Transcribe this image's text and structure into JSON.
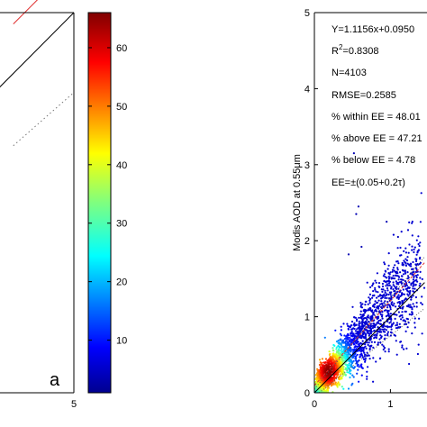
{
  "chart_data": [
    {
      "type": "scatter",
      "panel_label": "a",
      "xlim": [
        0,
        5
      ],
      "x_ticks_visible": [
        "5"
      ],
      "lines": [
        {
          "name": "",
          "kind": "fit",
          "color": "#e03030",
          "style": "solid",
          "points": [
            [
              4.2,
              4.85
            ],
            [
              5,
              5.65
            ]
          ]
        },
        {
          "name": "",
          "kind": "one-to-one",
          "color": "#000000",
          "style": "solid",
          "points": [
            [
              3.9,
              3.9
            ],
            [
              5,
              5
            ]
          ]
        },
        {
          "name": "",
          "kind": "ee-lower",
          "color": "#777777",
          "style": "dotted",
          "points": [
            [
              4.2,
              3.25
            ],
            [
              5,
              3.95
            ]
          ]
        }
      ]
    },
    {
      "type": "colorbar",
      "colormap": "jet",
      "range": [
        1,
        66
      ],
      "ticks": [
        "60",
        "50",
        "40",
        "30",
        "20",
        "10"
      ],
      "tick_values": [
        60,
        50,
        40,
        30,
        20,
        10
      ]
    },
    {
      "type": "scatter",
      "ylabel": "Modis AOD at 0.55μm",
      "xlim": [
        0,
        1.45
      ],
      "ylim": [
        0,
        5
      ],
      "x_ticks": [
        "0",
        "1"
      ],
      "y_ticks": [
        "0",
        "1",
        "2",
        "3",
        "4",
        "5"
      ],
      "annotations": {
        "equation": "Y=1.1156x+0.0950",
        "r2_prefix": "R",
        "r2_sup": "2",
        "r2_value": "=0.8308",
        "n": "N=4103",
        "rmse": "RMSE=0.2585",
        "within": "% within EE = 48.01",
        "above": "% above EE = 47.21",
        "below": "% below EE = 4.78",
        "ee": "EE=±(0.05+0.2τ)"
      },
      "fit": {
        "slope": 1.1156,
        "intercept": 0.095,
        "color": "#e03030"
      },
      "one_to_one": {
        "color": "#000000"
      },
      "outliers": [
        [
          0.52,
          3.15
        ],
        [
          0.58,
          2.45
        ],
        [
          0.55,
          2.35
        ],
        [
          0.95,
          2.25
        ],
        [
          0.62,
          1.92
        ],
        [
          1.1,
          2.05
        ],
        [
          0.45,
          1.82
        ]
      ]
    }
  ]
}
